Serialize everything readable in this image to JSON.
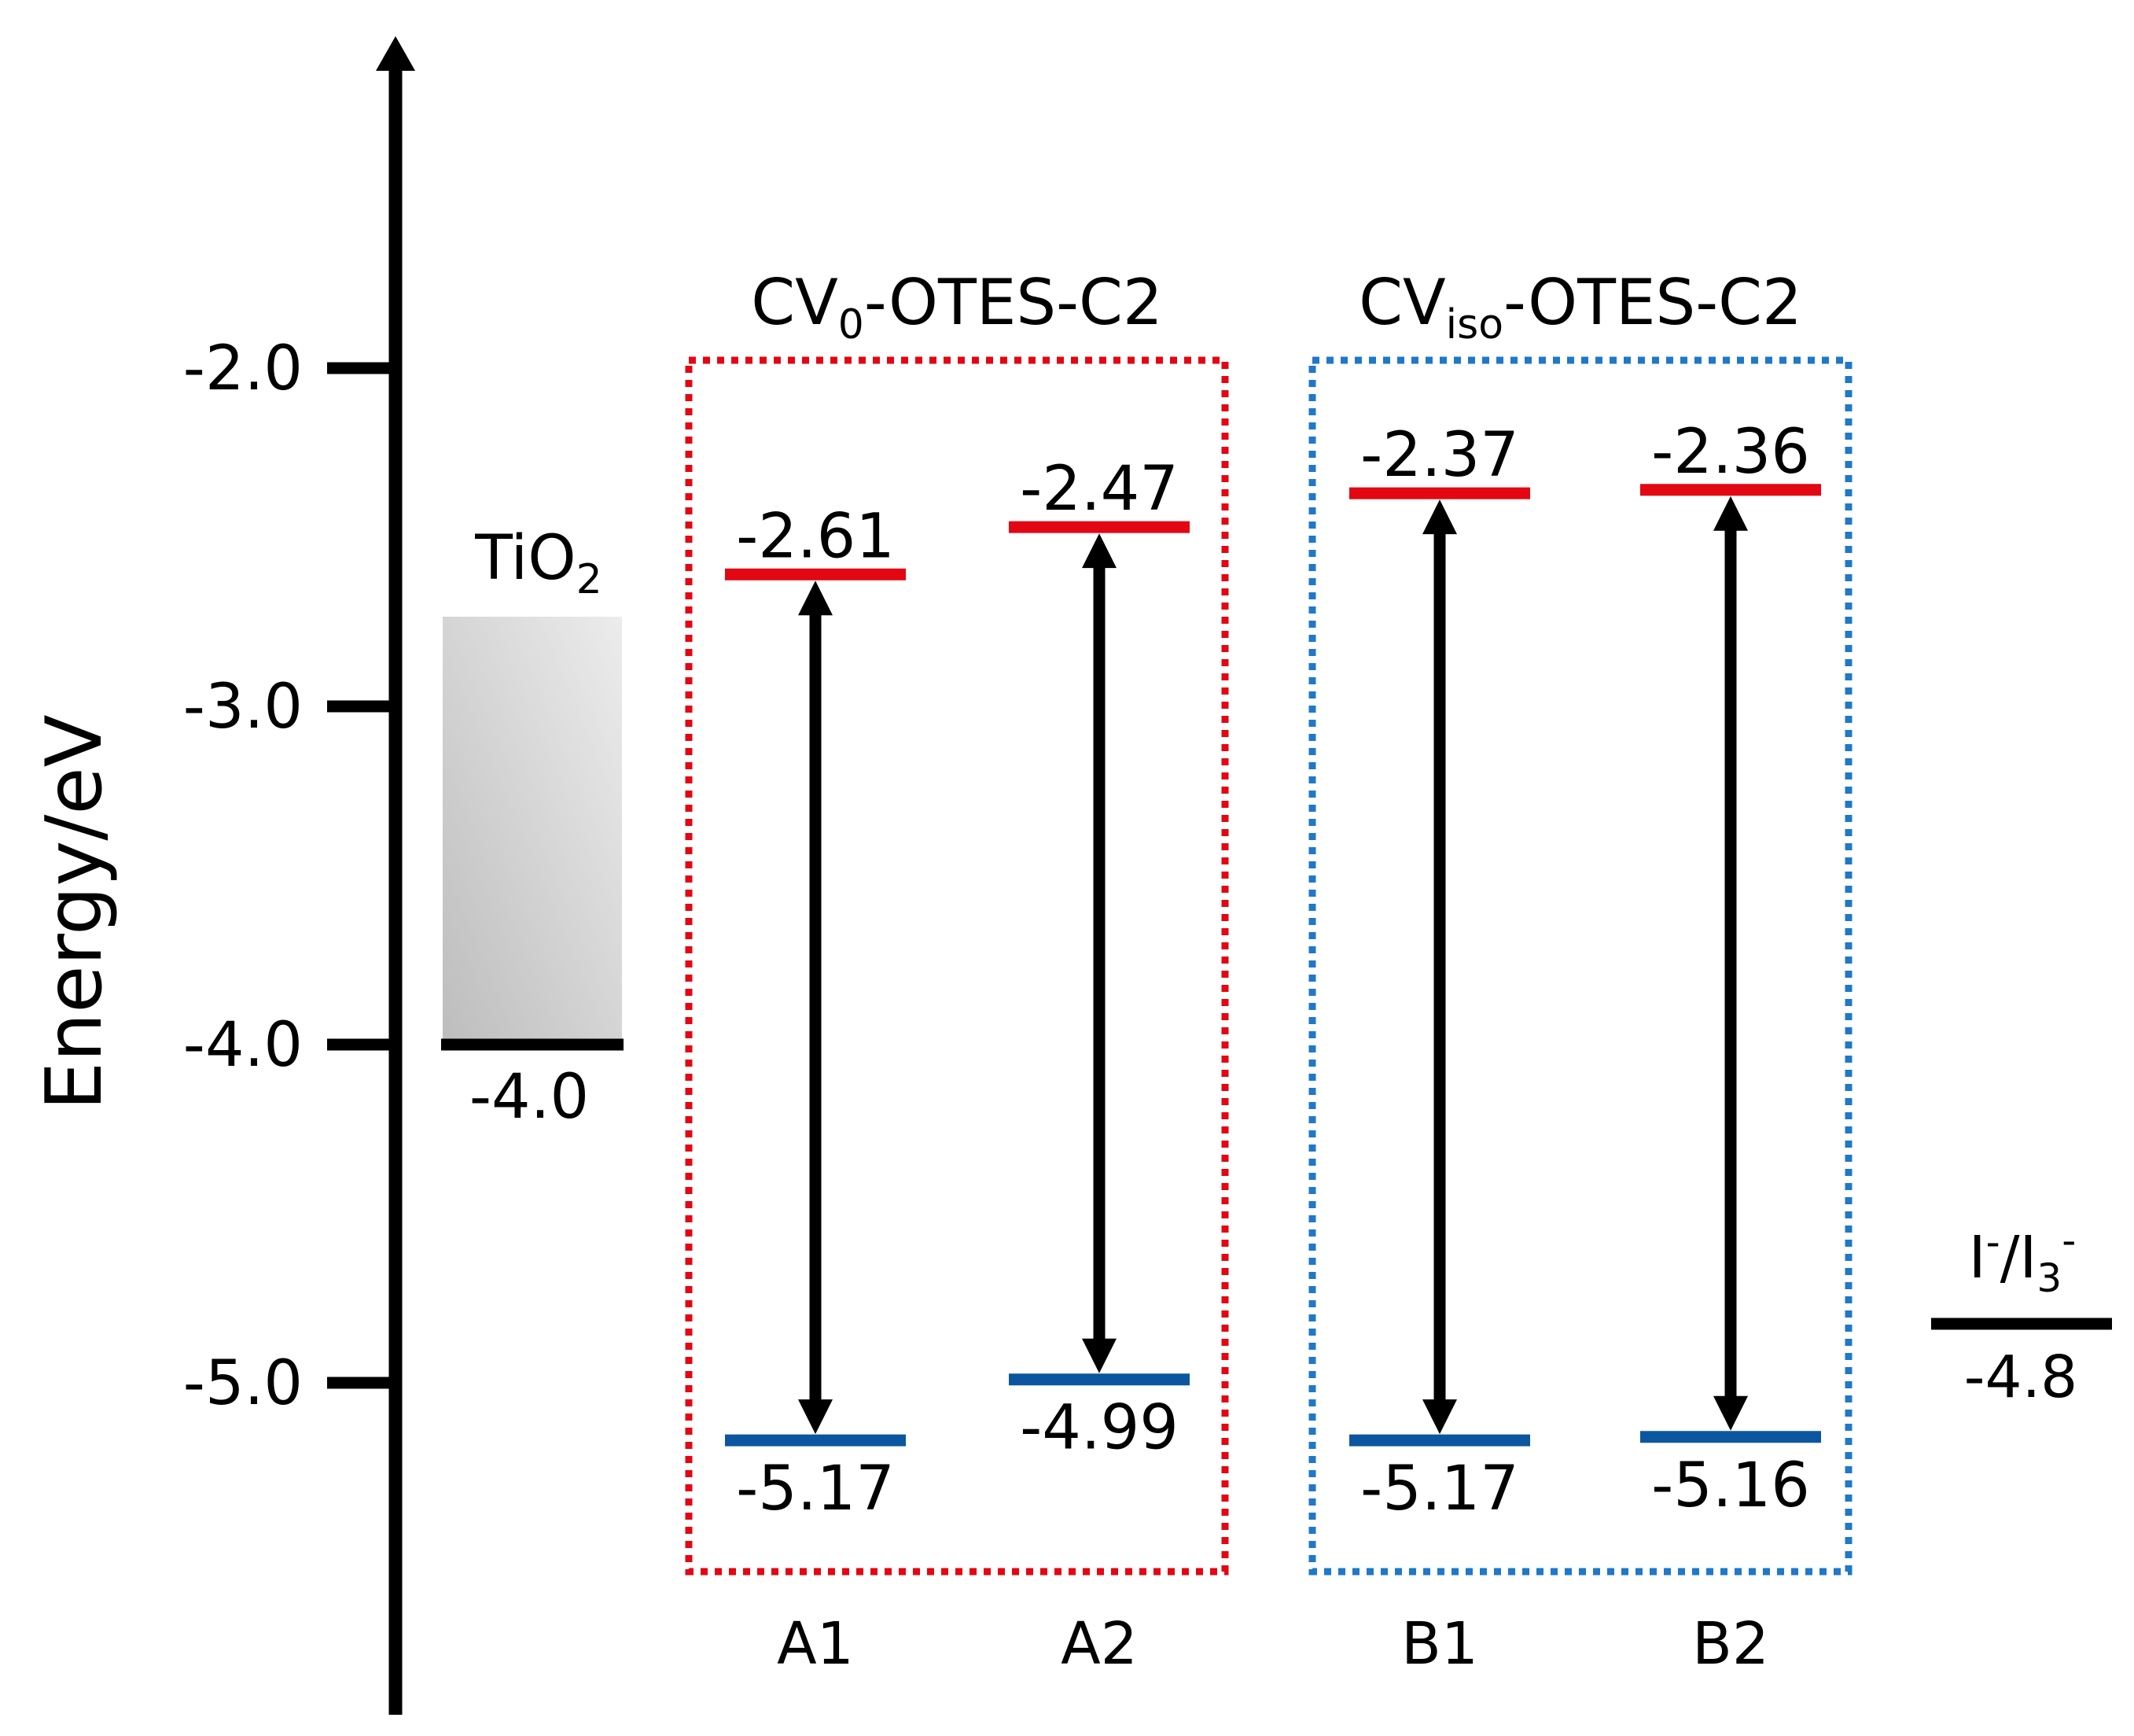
{
  "axis": {
    "label": "Energy/eV",
    "ticks": [
      {
        "value": -2.0,
        "label": "-2.0"
      },
      {
        "value": -3.0,
        "label": "-3.0"
      },
      {
        "value": -4.0,
        "label": "-4.0"
      },
      {
        "value": -5.0,
        "label": "-5.0"
      }
    ]
  },
  "tio2": {
    "label_main": "TiO",
    "label_sub": "2",
    "cb_value": -4.0,
    "cb_label": "-4.0",
    "gradient_light": "#ececec",
    "gradient_dark": "#bdbdbd"
  },
  "groups": [
    {
      "id": "cv0",
      "title_main": "CV",
      "title_sub": "0",
      "title_rest": "-OTES-C2",
      "border_color": "#e30613",
      "dyes": [
        {
          "name": "A1",
          "lumo": -2.61,
          "lumo_label": "-2.61",
          "homo": -5.17,
          "homo_label": "-5.17"
        },
        {
          "name": "A2",
          "lumo": -2.47,
          "lumo_label": "-2.47",
          "homo": -4.99,
          "homo_label": "-4.99"
        }
      ]
    },
    {
      "id": "cviso",
      "title_main": "CV",
      "title_sub": "iso",
      "title_rest": "-OTES-C2",
      "border_color": "#1f78c8",
      "dyes": [
        {
          "name": "B1",
          "lumo": -2.37,
          "lumo_label": "-2.37",
          "homo": -5.17,
          "homo_label": "-5.17"
        },
        {
          "name": "B2",
          "lumo": -2.36,
          "lumo_label": "-2.36",
          "homo": -5.16,
          "homo_label": "-5.16"
        }
      ]
    }
  ],
  "redox": {
    "label_a": "I",
    "sup_a": "-",
    "label_b": "/I",
    "sub_b": "3",
    "sup_b": "-",
    "value": -4.8,
    "value_label": "-4.8"
  },
  "colors": {
    "lumo": "#e30613",
    "homo": "#0c56a0",
    "axis": "#000000",
    "arrow": "#000000"
  }
}
